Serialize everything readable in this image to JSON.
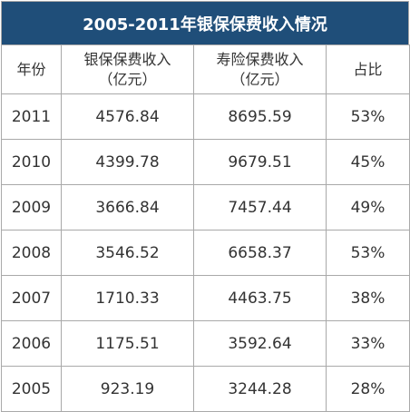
{
  "title": "2005-2011年银保保费收入情况",
  "headers": {
    "year": "年份",
    "bank_line1": "银保保费收入",
    "bank_line2": "（亿元）",
    "life_line1": "寿险保费收入",
    "life_line2": "（亿元）",
    "share": "占比"
  },
  "rows": [
    {
      "year": "2011",
      "bank": "4576.84",
      "life": "8695.59",
      "share": "53%"
    },
    {
      "year": "2010",
      "bank": "4399.78",
      "life": "9679.51",
      "share": "45%"
    },
    {
      "year": "2009",
      "bank": "3666.84",
      "life": "7457.44",
      "share": "49%"
    },
    {
      "year": "2008",
      "bank": "3546.52",
      "life": "6658.37",
      "share": "53%"
    },
    {
      "year": "2007",
      "bank": "1710.33",
      "life": "4463.75",
      "share": "38%"
    },
    {
      "year": "2006",
      "bank": "1175.51",
      "life": "3592.64",
      "share": "33%"
    },
    {
      "year": "2005",
      "bank": "923.19",
      "life": "3244.28",
      "share": "28%"
    }
  ],
  "colors": {
    "title_background": "#1f4e79",
    "title_text": "#ffffff",
    "border": "#a9a9a9",
    "text": "#333333"
  }
}
